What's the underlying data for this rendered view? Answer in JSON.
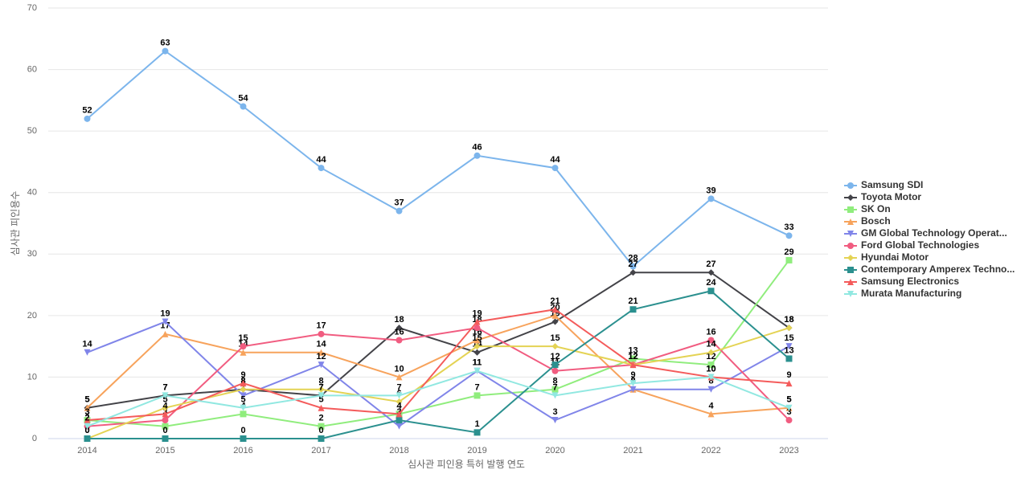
{
  "chart_data": {
    "type": "line",
    "x_label": "심사관 피인용 특허 발행 연도",
    "y_label": "심사관 피인용수",
    "categories": [
      "2014",
      "2015",
      "2016",
      "2017",
      "2018",
      "2019",
      "2020",
      "2021",
      "2022",
      "2023"
    ],
    "ylim": [
      0,
      70
    ],
    "yticks": [
      0,
      10,
      20,
      30,
      40,
      50,
      60,
      70
    ],
    "grid": true,
    "series": [
      {
        "name": "Samsung SDI",
        "color": "#7cb5ec",
        "marker": "circle",
        "values": [
          52,
          63,
          54,
          44,
          37,
          46,
          44,
          28,
          39,
          33
        ]
      },
      {
        "name": "Toyota Motor",
        "color": "#434348",
        "marker": "diamond",
        "values": [
          5,
          7,
          8,
          7,
          18,
          14,
          19,
          27,
          27,
          18
        ]
      },
      {
        "name": "SK On",
        "color": "#90ed7d",
        "marker": "square",
        "values": [
          3,
          2,
          4,
          2,
          4,
          7,
          8,
          13,
          12,
          29
        ]
      },
      {
        "name": "Bosch",
        "color": "#f7a35c",
        "marker": "triangle",
        "values": [
          5,
          17,
          14,
          14,
          10,
          16,
          20,
          8,
          4,
          5
        ]
      },
      {
        "name": "GM Global Technology Operat...",
        "color": "#8085e9",
        "marker": "triangle-down",
        "values": [
          14,
          19,
          7,
          12,
          2,
          11,
          3,
          8,
          8,
          15
        ]
      },
      {
        "name": "Ford Global Technologies",
        "color": "#f15c80",
        "marker": "circle",
        "values": [
          2,
          3,
          15,
          17,
          16,
          18,
          11,
          12,
          16,
          3
        ]
      },
      {
        "name": "Hyundai Motor",
        "color": "#e4d354",
        "marker": "diamond",
        "values": [
          0,
          5,
          8,
          8,
          6,
          15,
          15,
          12,
          14,
          18
        ]
      },
      {
        "name": "Contemporary Amperex Techno...",
        "color": "#2b908f",
        "marker": "square",
        "values": [
          0,
          0,
          0,
          0,
          3,
          1,
          12,
          21,
          24,
          13
        ]
      },
      {
        "name": "Samsung Electronics",
        "color": "#f45b5b",
        "marker": "triangle",
        "values": [
          3,
          4,
          9,
          5,
          4,
          19,
          21,
          12,
          10,
          9
        ]
      },
      {
        "name": "Murata Manufacturing",
        "color": "#91e8e1",
        "marker": "triangle-down",
        "values": [
          2,
          7,
          5,
          7,
          7,
          11,
          7,
          9,
          10,
          5
        ]
      }
    ]
  }
}
